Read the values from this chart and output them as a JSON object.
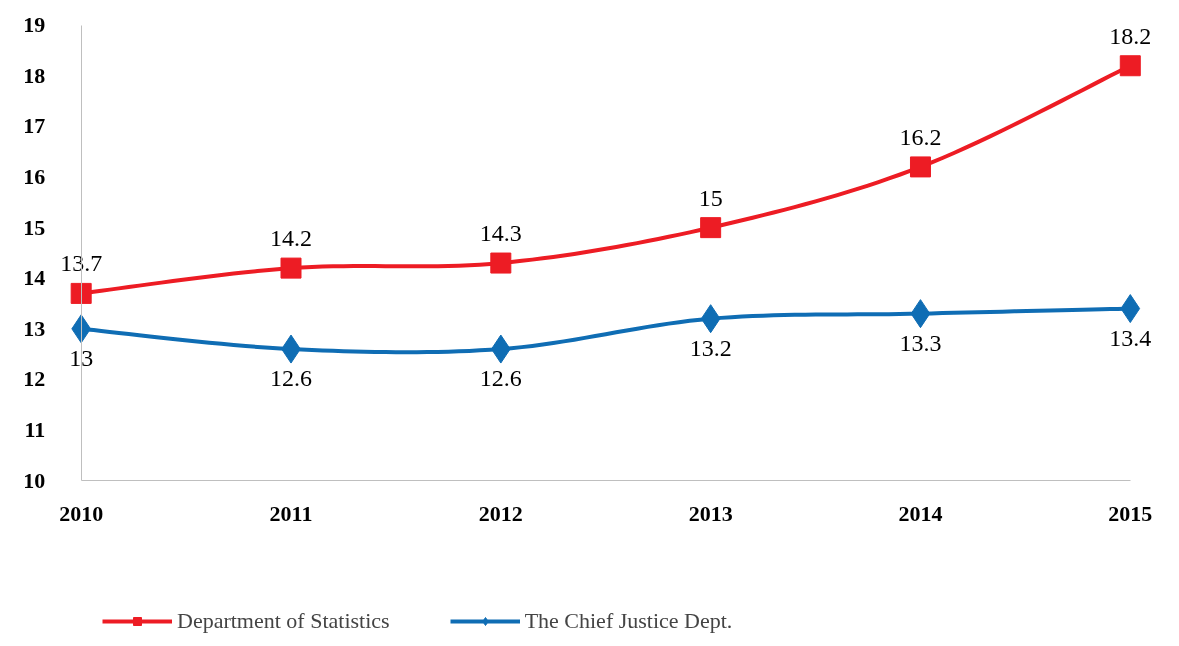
{
  "chart_data": {
    "type": "line",
    "x": [
      2010,
      2011,
      2012,
      2013,
      2014,
      2015
    ],
    "xlim": [
      2010,
      2015
    ],
    "xticks": [
      2010,
      2011,
      2012,
      2013,
      2014,
      2015
    ],
    "ylim": [
      10,
      19
    ],
    "yticks": [
      10,
      11,
      12,
      13,
      14,
      15,
      16,
      17,
      18,
      19
    ],
    "series": [
      {
        "name": "Department of Statistics",
        "color": "#ed1c24",
        "marker": "square",
        "values": [
          13.7,
          14.2,
          14.3,
          15,
          16.2,
          18.2
        ]
      },
      {
        "name": "The Chief Justice Dept.",
        "color": "#0f6db4",
        "marker": "diamond",
        "values": [
          13,
          12.6,
          12.6,
          13.2,
          13.3,
          13.4
        ]
      }
    ],
    "data_labels": true,
    "grid": false,
    "legend": "bottom"
  }
}
